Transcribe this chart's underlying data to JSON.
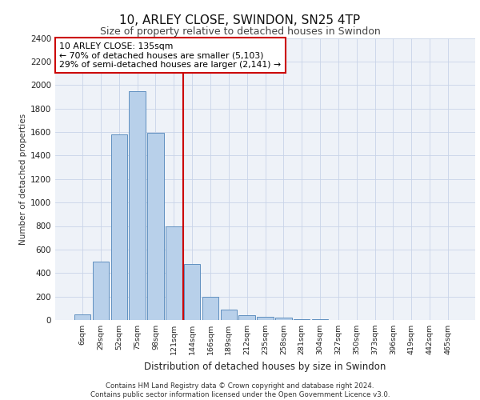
{
  "title_line1": "10, ARLEY CLOSE, SWINDON, SN25 4TP",
  "title_line2": "Size of property relative to detached houses in Swindon",
  "xlabel": "Distribution of detached houses by size in Swindon",
  "ylabel": "Number of detached properties",
  "footer_line1": "Contains HM Land Registry data © Crown copyright and database right 2024.",
  "footer_line2": "Contains public sector information licensed under the Open Government Licence v3.0.",
  "categories": [
    "6sqm",
    "29sqm",
    "52sqm",
    "75sqm",
    "98sqm",
    "121sqm",
    "144sqm",
    "166sqm",
    "189sqm",
    "212sqm",
    "235sqm",
    "258sqm",
    "281sqm",
    "304sqm",
    "327sqm",
    "350sqm",
    "373sqm",
    "396sqm",
    "419sqm",
    "442sqm",
    "465sqm"
  ],
  "values": [
    50,
    500,
    1580,
    1950,
    1590,
    800,
    480,
    200,
    90,
    40,
    30,
    20,
    10,
    5,
    2,
    2,
    1,
    1,
    0,
    0,
    0
  ],
  "bar_color": "#b8d0ea",
  "bar_edge_color": "#6090c0",
  "vline_color": "#cc0000",
  "annotation_text": "10 ARLEY CLOSE: 135sqm\n← 70% of detached houses are smaller (5,103)\n29% of semi-detached houses are larger (2,141) →",
  "annotation_box_color": "#ffffff",
  "annotation_box_edge": "#cc0000",
  "ylim": [
    0,
    2400
  ],
  "yticks": [
    0,
    200,
    400,
    600,
    800,
    1000,
    1200,
    1400,
    1600,
    1800,
    2000,
    2200,
    2400
  ],
  "grid_color": "#c8d4e8",
  "background_color": "#eef2f8"
}
